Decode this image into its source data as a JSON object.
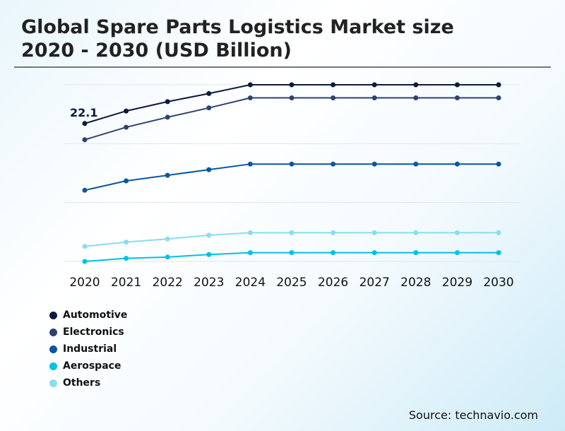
{
  "title_line1": "Global Spare Parts Logistics Market size",
  "title_line2": "2020 - 2030 (USD Billion)",
  "source": "Source: technavio.com",
  "chart_data": {
    "type": "line",
    "title": "Global Spare Parts Logistics Market size 2020 - 2030 (USD Billion)",
    "categories": [
      "2020",
      "2021",
      "2022",
      "2023",
      "2024",
      "2025",
      "2026",
      "2027",
      "2028",
      "2029",
      "2030"
    ],
    "ylim": [
      0,
      28.3
    ],
    "grid": true,
    "legend_position": "bottom-left",
    "annotations": [
      {
        "series": "Automotive",
        "category": "2020",
        "label": "22.1"
      }
    ],
    "series": [
      {
        "name": "Automotive",
        "color": "#0b1a3d",
        "values": [
          22.1,
          24.1,
          25.6,
          26.9,
          28.3,
          28.3,
          28.3,
          28.3,
          28.3,
          28.3,
          28.3
        ]
      },
      {
        "name": "Electronics",
        "color": "#2e416f",
        "values": [
          19.5,
          21.5,
          23.1,
          24.6,
          26.2,
          26.2,
          26.2,
          26.2,
          26.2,
          26.2,
          26.2
        ]
      },
      {
        "name": "Industrial",
        "color": "#0a56a3",
        "values": [
          11.4,
          12.9,
          13.8,
          14.7,
          15.6,
          15.6,
          15.6,
          15.6,
          15.6,
          15.6,
          15.6
        ]
      },
      {
        "name": "Aerospace",
        "color": "#00c2e3",
        "values": [
          0.0,
          0.5,
          0.7,
          1.1,
          1.4,
          1.4,
          1.4,
          1.4,
          1.4,
          1.4,
          1.4
        ]
      },
      {
        "name": "Others",
        "color": "#8adcf0",
        "values": [
          2.4,
          3.1,
          3.6,
          4.2,
          4.6,
          4.6,
          4.6,
          4.6,
          4.6,
          4.6,
          4.6
        ]
      }
    ]
  }
}
